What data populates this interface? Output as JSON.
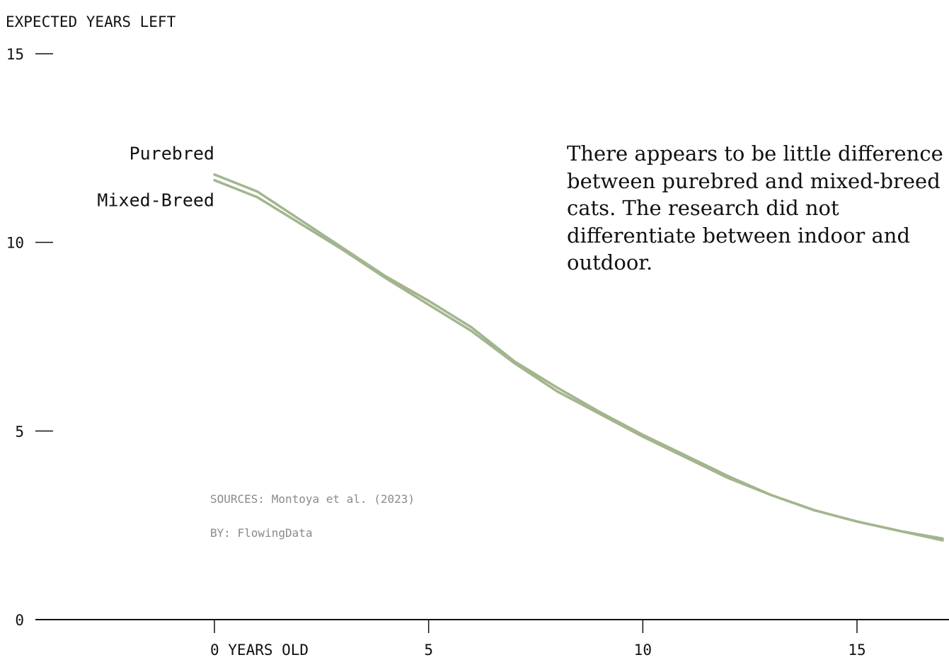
{
  "chart_data": {
    "type": "line",
    "ylabel": "EXPECTED YEARS LEFT",
    "xlabel": "",
    "x_tick_labels": [
      "0 YEARS OLD",
      "5",
      "10",
      "15"
    ],
    "x_ticks": [
      0,
      5,
      10,
      15
    ],
    "y_ticks": [
      0,
      5,
      10,
      15
    ],
    "y_tick_labels": [
      "0",
      "5",
      "10",
      "15"
    ],
    "xlim": [
      -4.2,
      17.2
    ],
    "ylim": [
      0,
      15
    ],
    "grid": false,
    "line_color": "#a3b58e",
    "x": [
      0,
      1,
      2,
      3,
      4,
      5,
      6,
      7,
      8,
      9,
      10,
      11,
      12,
      13,
      14,
      15,
      16,
      17
    ],
    "series": [
      {
        "name": "Purebred",
        "values": [
          11.8,
          11.35,
          10.6,
          9.85,
          9.1,
          8.45,
          7.75,
          6.85,
          6.15,
          5.5,
          4.9,
          4.35,
          3.8,
          3.3,
          2.9,
          2.6,
          2.35,
          2.15
        ]
      },
      {
        "name": "Mixed-Breed",
        "values": [
          11.65,
          11.2,
          10.5,
          9.8,
          9.05,
          8.35,
          7.65,
          6.8,
          6.05,
          5.45,
          4.85,
          4.3,
          3.75,
          3.3,
          2.9,
          2.6,
          2.35,
          2.1
        ]
      }
    ],
    "annotation": "There appears to be little difference between purebred and mixed-breed cats. The research did not differentiate between indoor and outdoor."
  },
  "credits": {
    "sources": "SOURCES: Montoya et al. (2023)",
    "by": "BY: FlowingData"
  }
}
